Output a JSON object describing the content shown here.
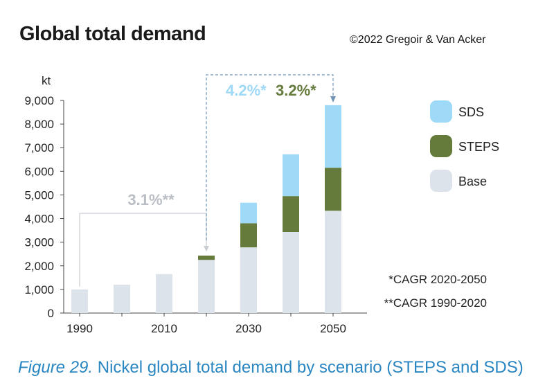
{
  "header": {
    "title": "Global total demand",
    "copyright": "©2022 Gregoir & Van Acker"
  },
  "caption": {
    "figure": "Figure 29.",
    "text": " Nickel global total demand by scenario (STEPS and SDS)"
  },
  "chart_data": {
    "type": "bar",
    "stacked": true,
    "ylabel": "kt",
    "ylim": [
      0,
      9000
    ],
    "yticks": [
      0,
      1000,
      2000,
      3000,
      4000,
      5000,
      6000,
      7000,
      8000,
      9000
    ],
    "ytick_labels": [
      "0",
      "1,000",
      "2,000",
      "3,000",
      "4,000",
      "5,000",
      "6,000",
      "7,000",
      "8,000",
      "9,000"
    ],
    "categories": [
      1990,
      2000,
      2010,
      2020,
      2030,
      2040,
      2050
    ],
    "xtick_labels": [
      "1990",
      "",
      "2010",
      "",
      "2030",
      "",
      "2050"
    ],
    "series": [
      {
        "name": "Base",
        "color": "#dde3ea",
        "values": [
          1000,
          1200,
          1650,
          2250,
          2780,
          3430,
          4330
        ]
      },
      {
        "name": "STEPS",
        "color": "#647b3b",
        "values": [
          0,
          0,
          0,
          180,
          1020,
          1520,
          1820
        ]
      },
      {
        "name": "SDS",
        "color": "#9fd9f8",
        "values": [
          0,
          0,
          0,
          0,
          870,
          1770,
          2650
        ]
      }
    ],
    "legend": {
      "position": "right",
      "order": [
        "SDS",
        "STEPS",
        "Base"
      ]
    },
    "annotations": {
      "cagr_2020_2050": {
        "sds": "4.2%*",
        "steps": "3.2%*",
        "sds_color": "#9fd9f8",
        "steps_color": "#647b3b",
        "line_color": "#6f93b5"
      },
      "cagr_1990_2020": {
        "text": "3.1%**",
        "color": "#b9bec5",
        "line_color": "#c7ccd2"
      },
      "notes": [
        "*CAGR 2020-2050",
        "**CAGR 1990-2020"
      ]
    },
    "grid": false
  }
}
